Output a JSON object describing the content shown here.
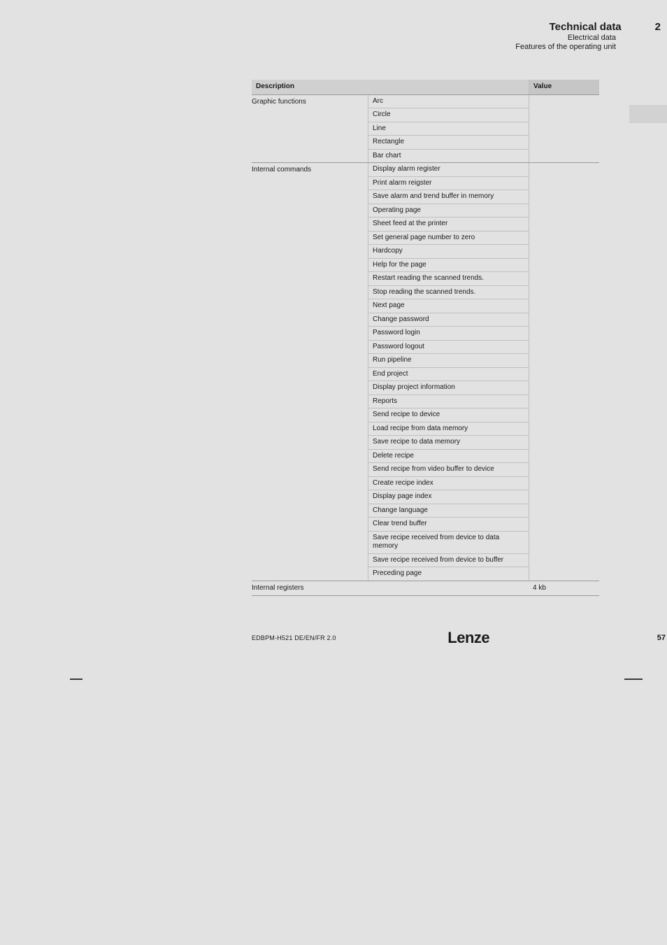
{
  "header": {
    "title": "Technical data",
    "section_number": "2",
    "subtitle1": "Electrical data",
    "subtitle2": "Features of the operating unit"
  },
  "table": {
    "columns": {
      "c1": "Description",
      "c2": "",
      "c3": "Value"
    },
    "groups": [
      {
        "label": "Graphic functions",
        "value": "",
        "items": [
          "Arc",
          "Circle",
          "Line",
          "Rectangle",
          "Bar chart"
        ]
      },
      {
        "label": "Internal commands",
        "value": "",
        "items": [
          "Display alarm register",
          "Print alarm reigster",
          "Save alarm and trend buffer in memory",
          "Operating page",
          "Sheet feed at the printer",
          "Set general page number to zero",
          "Hardcopy",
          "Help for the page",
          "Restart reading the scanned trends.",
          "Stop reading the scanned trends.",
          "Next page",
          "Change password",
          "Password login",
          "Password logout",
          "Run pipeline",
          "End project",
          "Display project information",
          "Reports",
          "Send recipe to device",
          "Load recipe from data memory",
          "Save recipe to data memory",
          "Delete recipe",
          "Send recipe from video buffer to device",
          "Create recipe index",
          "Display page index",
          "Change language",
          "Clear trend buffer",
          "Save recipe received from device to data memory",
          "Save recipe received from device to buffer",
          "Preceding page"
        ]
      },
      {
        "label": "Internal registers",
        "value": "4 kb",
        "items": []
      }
    ]
  },
  "footer": {
    "docid": "EDBPM-H521  DE/EN/FR  2.0",
    "logo": "Lenze",
    "page": "57"
  }
}
